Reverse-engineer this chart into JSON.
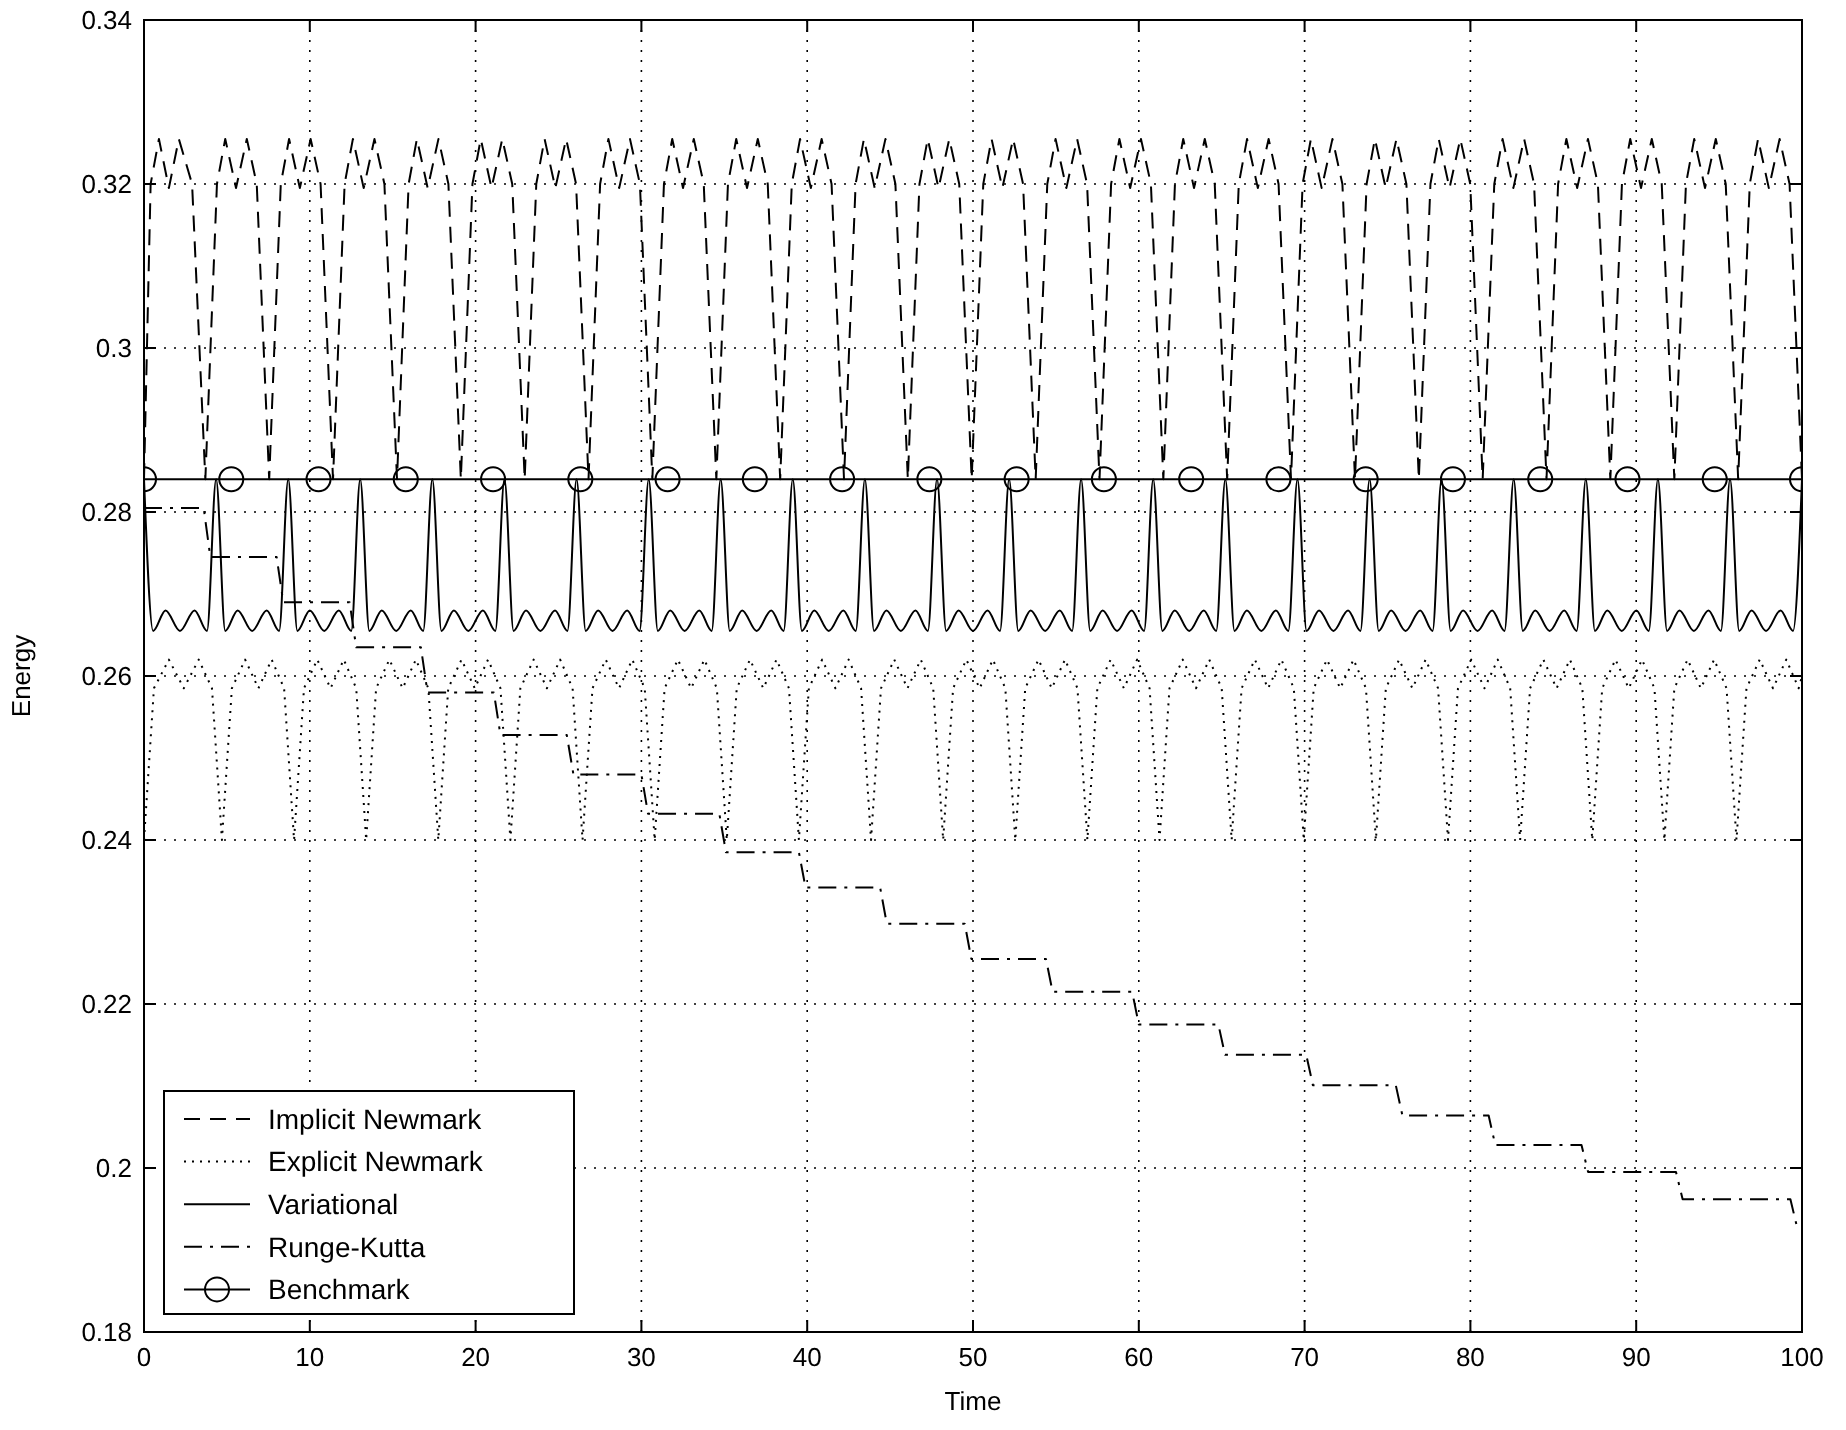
{
  "chart_data": {
    "type": "line",
    "xlabel": "Time",
    "ylabel": "Energy",
    "xlim": [
      0,
      100
    ],
    "xticks": [
      0,
      10,
      20,
      30,
      40,
      50,
      60,
      70,
      80,
      90,
      100
    ],
    "ylim": [
      0.18,
      0.34
    ],
    "yticks": [
      0.18,
      0.2,
      0.22,
      0.24,
      0.26,
      0.28,
      0.3,
      0.32,
      0.34
    ],
    "grid": true,
    "legend": "bottom left",
    "series": [
      {
        "name": "Implicit Newmark",
        "color": "#000000",
        "line_style": "dashed",
        "marker": "none",
        "x": [
          0,
          0.4,
          0.9,
          1.5,
          2.1,
          2.9,
          3.7,
          4.4,
          4.9,
          5.55,
          6.2,
          6.8,
          7.55,
          8.25,
          8.75,
          9.4,
          10.05,
          10.65,
          11.4,
          12.1,
          12.6,
          13.25,
          13.9,
          14.5,
          15.26,
          15.96,
          16.46,
          17.11,
          17.76,
          18.36,
          19.11,
          19.81,
          20.31,
          20.96,
          21.61,
          22.21,
          22.96,
          23.66,
          24.16,
          24.81,
          25.46,
          26.06,
          26.81,
          27.51,
          28.01,
          28.66,
          29.31,
          29.91,
          30.66,
          31.36,
          31.86,
          32.51,
          33.16,
          33.76,
          34.52,
          35.22,
          35.72,
          36.37,
          37.02,
          37.62,
          38.37,
          39.07,
          39.57,
          40.22,
          40.87,
          41.47,
          42.22,
          42.92,
          43.42,
          44.07,
          44.72,
          45.32,
          46.07,
          46.77,
          47.27,
          47.92,
          48.57,
          49.17,
          49.92,
          50.62,
          51.12,
          51.77,
          52.42,
          53.02,
          53.78,
          54.48,
          54.98,
          55.63,
          56.28,
          56.88,
          57.63,
          58.33,
          58.83,
          59.48,
          60.13,
          60.73,
          61.48,
          62.18,
          62.68,
          63.33,
          63.98,
          64.58,
          65.33,
          66.03,
          66.53,
          67.18,
          67.83,
          68.43,
          69.18,
          69.88,
          70.38,
          71.03,
          71.68,
          72.28,
          73.04,
          73.74,
          74.24,
          74.89,
          75.54,
          76.14,
          76.89,
          77.59,
          78.09,
          78.74,
          79.39,
          79.99,
          80.74,
          81.44,
          81.94,
          82.59,
          83.24,
          83.84,
          84.59,
          85.29,
          85.79,
          86.44,
          87.09,
          87.69,
          88.44,
          89.14,
          89.64,
          90.29,
          90.94,
          91.54,
          92.3,
          93.0,
          93.5,
          94.15,
          94.8,
          95.4,
          96.15,
          96.85,
          97.35,
          98.0,
          98.65,
          99.25,
          100
        ],
        "values": [
          0.284,
          0.32,
          0.3255,
          0.3195,
          0.3255,
          0.32,
          0.284,
          0.32,
          0.3255,
          0.3195,
          0.3255,
          0.32,
          0.284,
          0.32,
          0.3255,
          0.3195,
          0.3255,
          0.32,
          0.284,
          0.32,
          0.3255,
          0.3195,
          0.3255,
          0.32,
          0.284,
          0.32,
          0.3255,
          0.3195,
          0.3255,
          0.32,
          0.284,
          0.32,
          0.3255,
          0.3195,
          0.3255,
          0.32,
          0.284,
          0.32,
          0.3255,
          0.3195,
          0.3255,
          0.32,
          0.284,
          0.32,
          0.3255,
          0.3195,
          0.3255,
          0.32,
          0.284,
          0.32,
          0.3255,
          0.3195,
          0.3255,
          0.32,
          0.284,
          0.32,
          0.3255,
          0.3195,
          0.3255,
          0.32,
          0.284,
          0.32,
          0.3255,
          0.3195,
          0.3255,
          0.32,
          0.284,
          0.32,
          0.3255,
          0.3195,
          0.3255,
          0.32,
          0.284,
          0.32,
          0.3255,
          0.3195,
          0.3255,
          0.32,
          0.284,
          0.32,
          0.3255,
          0.3195,
          0.3255,
          0.32,
          0.284,
          0.32,
          0.3255,
          0.3195,
          0.3255,
          0.32,
          0.284,
          0.32,
          0.3255,
          0.3195,
          0.3255,
          0.32,
          0.284,
          0.32,
          0.3255,
          0.3195,
          0.3255,
          0.32,
          0.284,
          0.32,
          0.3255,
          0.3195,
          0.3255,
          0.32,
          0.284,
          0.32,
          0.3255,
          0.3195,
          0.3255,
          0.32,
          0.284,
          0.32,
          0.3255,
          0.3195,
          0.3255,
          0.32,
          0.284,
          0.32,
          0.3255,
          0.3195,
          0.3255,
          0.32,
          0.284,
          0.32,
          0.3255,
          0.3195,
          0.3255,
          0.32,
          0.284,
          0.32,
          0.3255,
          0.3195,
          0.3255,
          0.32,
          0.284,
          0.32,
          0.3255,
          0.3195,
          0.3255,
          0.32,
          0.284,
          0.32,
          0.3255,
          0.3195,
          0.3255,
          0.32,
          0.284,
          0.32,
          0.3255,
          0.3195,
          0.3255,
          0.32,
          0.284
        ]
      },
      {
        "name": "Explicit Newmark",
        "color": "#000000",
        "line_style": "dotted",
        "marker": "none",
        "x": [
          0,
          0.6,
          1.5,
          2.4,
          3.3,
          4.1,
          4.7,
          5.3,
          6.1,
          6.9,
          7.7,
          8.45,
          9.05,
          9.65,
          10.45,
          11.25,
          12.05,
          12.8,
          13.4,
          14.0,
          14.8,
          15.6,
          16.4,
          17.15,
          17.75,
          18.35,
          19.15,
          19.95,
          20.75,
          21.5,
          22.1,
          22.7,
          23.5,
          24.3,
          25.1,
          25.85,
          26.45,
          27.05,
          27.85,
          28.65,
          29.45,
          30.2,
          30.8,
          31.4,
          32.2,
          33.0,
          33.8,
          34.55,
          35.15,
          35.75,
          36.55,
          37.35,
          38.15,
          38.9,
          39.5,
          40.1,
          40.9,
          41.7,
          42.5,
          43.25,
          43.85,
          44.45,
          45.25,
          46.05,
          46.85,
          47.6,
          48.2,
          48.8,
          49.6,
          50.4,
          51.2,
          51.95,
          52.55,
          53.15,
          53.95,
          54.75,
          55.55,
          56.3,
          56.9,
          57.5,
          58.3,
          59.1,
          59.9,
          60.65,
          61.25,
          61.85,
          62.65,
          63.45,
          64.25,
          65.0,
          65.6,
          66.2,
          67.0,
          67.8,
          68.6,
          69.35,
          69.95,
          70.55,
          71.35,
          72.15,
          72.95,
          73.7,
          74.3,
          74.9,
          75.7,
          76.5,
          77.3,
          78.05,
          78.65,
          79.25,
          80.05,
          80.85,
          81.65,
          82.4,
          83.0,
          83.6,
          84.4,
          85.2,
          86.0,
          86.75,
          87.35,
          87.95,
          88.75,
          89.55,
          90.35,
          91.1,
          91.7,
          92.3,
          93.1,
          93.9,
          94.7,
          95.45,
          96.05,
          96.65,
          97.45,
          98.25,
          99.05,
          99.8,
          100
        ],
        "values": [
          0.24,
          0.2585,
          0.262,
          0.2585,
          0.262,
          0.2585,
          0.24,
          0.2585,
          0.262,
          0.2585,
          0.262,
          0.2585,
          0.24,
          0.2585,
          0.262,
          0.2585,
          0.262,
          0.2585,
          0.24,
          0.2585,
          0.262,
          0.2585,
          0.262,
          0.2585,
          0.24,
          0.2585,
          0.262,
          0.2585,
          0.262,
          0.2585,
          0.24,
          0.2585,
          0.262,
          0.2585,
          0.262,
          0.2585,
          0.24,
          0.2585,
          0.262,
          0.2585,
          0.262,
          0.2585,
          0.24,
          0.2585,
          0.262,
          0.2585,
          0.262,
          0.2585,
          0.24,
          0.2585,
          0.262,
          0.2585,
          0.262,
          0.2585,
          0.24,
          0.2585,
          0.262,
          0.2585,
          0.262,
          0.2585,
          0.24,
          0.2585,
          0.262,
          0.2585,
          0.262,
          0.2585,
          0.24,
          0.2585,
          0.262,
          0.2585,
          0.262,
          0.2585,
          0.24,
          0.2585,
          0.262,
          0.2585,
          0.262,
          0.2585,
          0.24,
          0.2585,
          0.262,
          0.2585,
          0.262,
          0.2585,
          0.24,
          0.2585,
          0.262,
          0.2585,
          0.262,
          0.2585,
          0.24,
          0.2585,
          0.262,
          0.2585,
          0.262,
          0.2585,
          0.24,
          0.2585,
          0.262,
          0.2585,
          0.262,
          0.2585,
          0.24,
          0.2585,
          0.262,
          0.2585,
          0.262,
          0.2585,
          0.24,
          0.2585,
          0.262,
          0.2585,
          0.262,
          0.2585,
          0.24,
          0.2585,
          0.262,
          0.2585,
          0.262,
          0.2585,
          0.24,
          0.2585,
          0.262,
          0.2585,
          0.262,
          0.2585,
          0.24,
          0.2585,
          0.262,
          0.2585,
          0.262,
          0.2585,
          0.24,
          0.2585,
          0.262,
          0.2585,
          0.262,
          0.2585,
          0.26
        ]
      },
      {
        "name": "Variational",
        "color": "#000000",
        "line_style": "solid",
        "marker": "none",
        "x": [
          0,
          0.55,
          1.3,
          2.17,
          3.05,
          3.8,
          4.35,
          4.9,
          5.65,
          6.52,
          7.4,
          8.15,
          8.7,
          9.25,
          10.0,
          10.87,
          11.75,
          12.5,
          13.04,
          13.59,
          14.34,
          15.21,
          16.09,
          16.84,
          17.39,
          17.94,
          18.69,
          19.56,
          20.44,
          21.19,
          21.74,
          22.29,
          23.04,
          23.91,
          24.79,
          25.54,
          26.09,
          26.64,
          27.39,
          28.26,
          29.14,
          29.89,
          30.44,
          30.99,
          31.74,
          32.61,
          33.49,
          34.24,
          34.78,
          35.33,
          36.08,
          36.95,
          37.83,
          38.58,
          39.13,
          39.68,
          40.43,
          41.3,
          42.18,
          42.93,
          43.48,
          44.03,
          44.78,
          45.65,
          46.53,
          47.28,
          47.83,
          48.38,
          49.13,
          50.0,
          50.88,
          51.63,
          52.18,
          52.73,
          53.48,
          54.35,
          55.23,
          55.98,
          56.52,
          57.07,
          57.82,
          58.69,
          59.57,
          60.32,
          60.87,
          61.42,
          62.17,
          63.04,
          63.92,
          64.67,
          65.22,
          65.77,
          66.52,
          67.39,
          68.27,
          69.02,
          69.57,
          70.12,
          70.87,
          71.74,
          72.62,
          73.37,
          73.92,
          74.47,
          75.22,
          76.09,
          76.97,
          77.72,
          78.26,
          78.81,
          79.56,
          80.43,
          81.31,
          82.06,
          82.61,
          83.16,
          83.91,
          84.78,
          85.66,
          86.41,
          86.96,
          87.51,
          88.26,
          89.13,
          90.01,
          90.76,
          91.31,
          91.86,
          92.61,
          93.48,
          94.36,
          95.11,
          95.66,
          96.21,
          96.96,
          97.83,
          98.71,
          99.46,
          100
        ],
        "values": [
          0.284,
          0.2655,
          0.268,
          0.2655,
          0.268,
          0.2655,
          0.284,
          0.2655,
          0.268,
          0.2655,
          0.268,
          0.2655,
          0.284,
          0.2655,
          0.268,
          0.2655,
          0.268,
          0.2655,
          0.284,
          0.2655,
          0.268,
          0.2655,
          0.268,
          0.2655,
          0.284,
          0.2655,
          0.268,
          0.2655,
          0.268,
          0.2655,
          0.284,
          0.2655,
          0.268,
          0.2655,
          0.268,
          0.2655,
          0.284,
          0.2655,
          0.268,
          0.2655,
          0.268,
          0.2655,
          0.284,
          0.2655,
          0.268,
          0.2655,
          0.268,
          0.2655,
          0.284,
          0.2655,
          0.268,
          0.2655,
          0.268,
          0.2655,
          0.284,
          0.2655,
          0.268,
          0.2655,
          0.268,
          0.2655,
          0.284,
          0.2655,
          0.268,
          0.2655,
          0.268,
          0.2655,
          0.284,
          0.2655,
          0.268,
          0.2655,
          0.268,
          0.2655,
          0.284,
          0.2655,
          0.268,
          0.2655,
          0.268,
          0.2655,
          0.284,
          0.2655,
          0.268,
          0.2655,
          0.268,
          0.2655,
          0.284,
          0.2655,
          0.268,
          0.2655,
          0.268,
          0.2655,
          0.284,
          0.2655,
          0.268,
          0.2655,
          0.268,
          0.2655,
          0.284,
          0.2655,
          0.268,
          0.2655,
          0.268,
          0.2655,
          0.284,
          0.2655,
          0.268,
          0.2655,
          0.268,
          0.2655,
          0.284,
          0.2655,
          0.268,
          0.2655,
          0.268,
          0.2655,
          0.284,
          0.2655,
          0.268,
          0.2655,
          0.268,
          0.2655,
          0.284,
          0.2655,
          0.268,
          0.2655,
          0.268,
          0.2655,
          0.284,
          0.2655,
          0.268,
          0.2655,
          0.268,
          0.2655,
          0.284,
          0.2655,
          0.268,
          0.2655,
          0.268,
          0.2655,
          0.284
        ]
      },
      {
        "name": "Runge-Kutta",
        "color": "#000000",
        "line_style": "dashdot",
        "marker": "none",
        "x": [
          0,
          3.6,
          4.0,
          8.0,
          8.4,
          12.4,
          12.8,
          16.7,
          17.1,
          21.1,
          21.5,
          25.5,
          25.9,
          30.0,
          30.4,
          34.7,
          35.1,
          39.5,
          39.9,
          44.4,
          44.8,
          49.5,
          49.9,
          54.4,
          54.8,
          59.6,
          60.0,
          64.8,
          65.2,
          70.1,
          70.5,
          75.5,
          75.9,
          81.1,
          81.5,
          86.7,
          87.1,
          92.4,
          92.8,
          99.3,
          99.7,
          100
        ],
        "values": [
          0.2805,
          0.2805,
          0.2745,
          0.2745,
          0.269,
          0.269,
          0.2635,
          0.2635,
          0.258,
          0.258,
          0.2528,
          0.2528,
          0.248,
          0.248,
          0.2432,
          0.2432,
          0.2385,
          0.2385,
          0.2342,
          0.2342,
          0.2298,
          0.2298,
          0.2255,
          0.2255,
          0.2215,
          0.2215,
          0.2175,
          0.2175,
          0.2138,
          0.2138,
          0.2101,
          0.2101,
          0.2064,
          0.2064,
          0.2028,
          0.2028,
          0.1995,
          0.1995,
          0.1962,
          0.1962,
          0.1928,
          0.1928
        ]
      },
      {
        "name": "Benchmark",
        "color": "#000000",
        "line_style": "solid",
        "marker": "circle",
        "x": [
          0,
          5.263,
          10.526,
          15.789,
          21.053,
          26.316,
          31.579,
          36.842,
          42.105,
          47.368,
          52.632,
          57.895,
          63.158,
          68.421,
          73.684,
          78.947,
          84.211,
          89.474,
          94.737,
          100
        ],
        "values": [
          0.284,
          0.284,
          0.284,
          0.284,
          0.284,
          0.284,
          0.284,
          0.284,
          0.284,
          0.284,
          0.284,
          0.284,
          0.284,
          0.284,
          0.284,
          0.284,
          0.284,
          0.284,
          0.284,
          0.284
        ]
      }
    ]
  }
}
